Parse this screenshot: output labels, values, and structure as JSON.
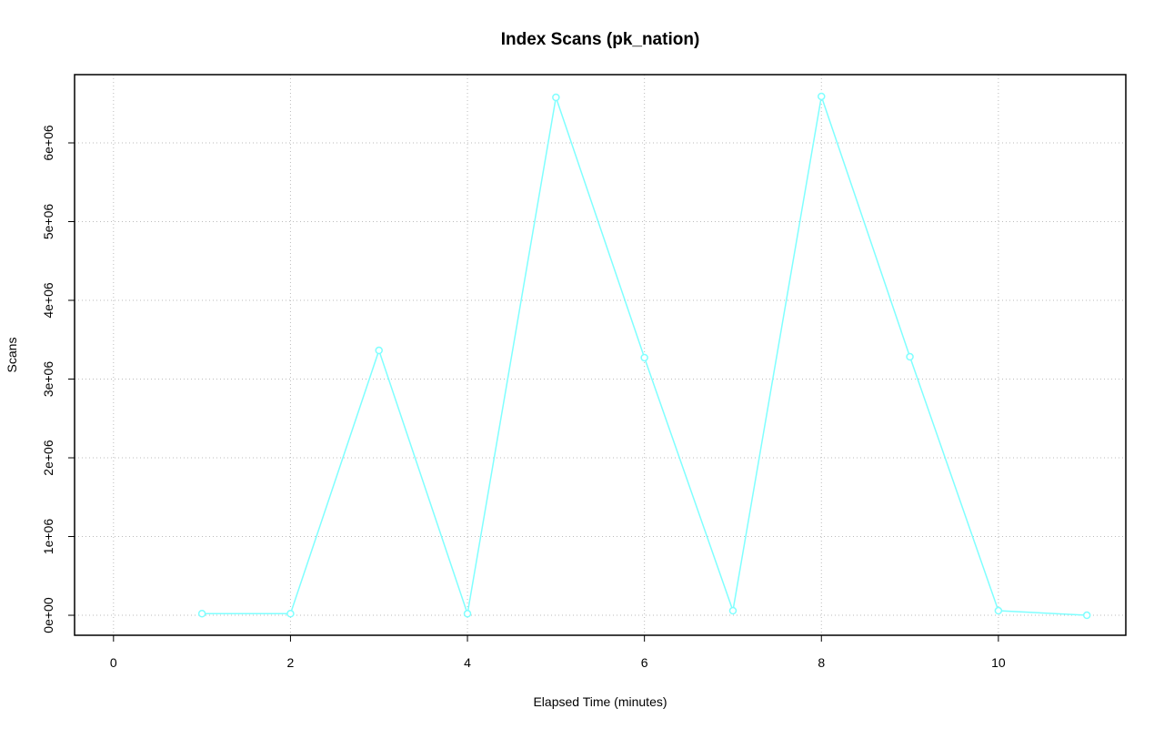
{
  "chart_data": {
    "type": "line",
    "title": "Index Scans (pk_nation)",
    "xlabel": "Elapsed Time (minutes)",
    "ylabel": "Scans",
    "x": [
      1,
      2,
      3,
      4,
      5,
      6,
      7,
      8,
      9,
      10,
      11
    ],
    "series": [
      {
        "name": "pk_nation",
        "color": "#7fffff",
        "values": [
          20000,
          20000,
          3364000,
          20000,
          6578000,
          3272000,
          58000,
          6590000,
          3283000,
          58000,
          0
        ]
      }
    ],
    "xlim": [
      -0.44,
      11.44
    ],
    "xticks": [
      0,
      2,
      4,
      6,
      8,
      10
    ],
    "ylim": [
      -254000,
      6867000
    ],
    "yticks": [
      {
        "value": 0,
        "label": "0e+00"
      },
      {
        "value": 1000000,
        "label": "1e+06"
      },
      {
        "value": 2000000,
        "label": "2e+06"
      },
      {
        "value": 3000000,
        "label": "3e+06"
      },
      {
        "value": 4000000,
        "label": "4e+06"
      },
      {
        "value": 5000000,
        "label": "5e+06"
      },
      {
        "value": 6000000,
        "label": "6e+06"
      }
    ],
    "grid": true
  }
}
